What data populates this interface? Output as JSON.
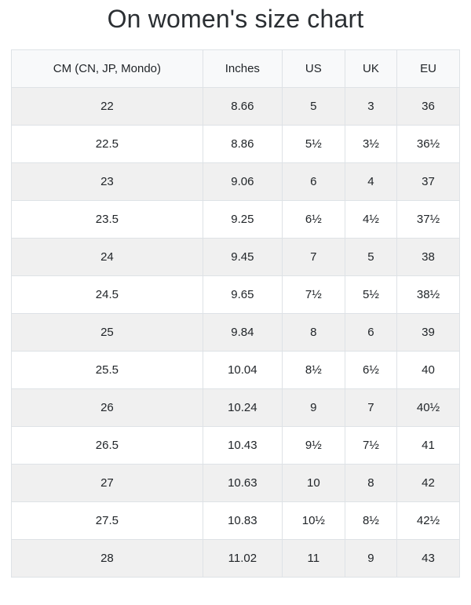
{
  "page": {
    "title": "On women's size chart"
  },
  "colors": {
    "page_bg": "#ffffff",
    "header_bg": "#f8f9fa",
    "stripe_bg": "#f0f0f0",
    "border": "#dee2e6",
    "text": "#212529"
  },
  "chart_data": {
    "type": "table",
    "title": "On women's size chart",
    "columns": [
      "CM (CN, JP, Mondo)",
      "Inches",
      "US",
      "UK",
      "EU"
    ],
    "rows": [
      [
        "22",
        "8.66",
        "5",
        "3",
        "36"
      ],
      [
        "22.5",
        "8.86",
        "5½",
        "3½",
        "36½"
      ],
      [
        "23",
        "9.06",
        "6",
        "4",
        "37"
      ],
      [
        "23.5",
        "9.25",
        "6½",
        "4½",
        "37½"
      ],
      [
        "24",
        "9.45",
        "7",
        "5",
        "38"
      ],
      [
        "24.5",
        "9.65",
        "7½",
        "5½",
        "38½"
      ],
      [
        "25",
        "9.84",
        "8",
        "6",
        "39"
      ],
      [
        "25.5",
        "10.04",
        "8½",
        "6½",
        "40"
      ],
      [
        "26",
        "10.24",
        "9",
        "7",
        "40½"
      ],
      [
        "26.5",
        "10.43",
        "9½",
        "7½",
        "41"
      ],
      [
        "27",
        "10.63",
        "10",
        "8",
        "42"
      ],
      [
        "27.5",
        "10.83",
        "10½",
        "8½",
        "42½"
      ],
      [
        "28",
        "11.02",
        "11",
        "9",
        "43"
      ]
    ]
  }
}
